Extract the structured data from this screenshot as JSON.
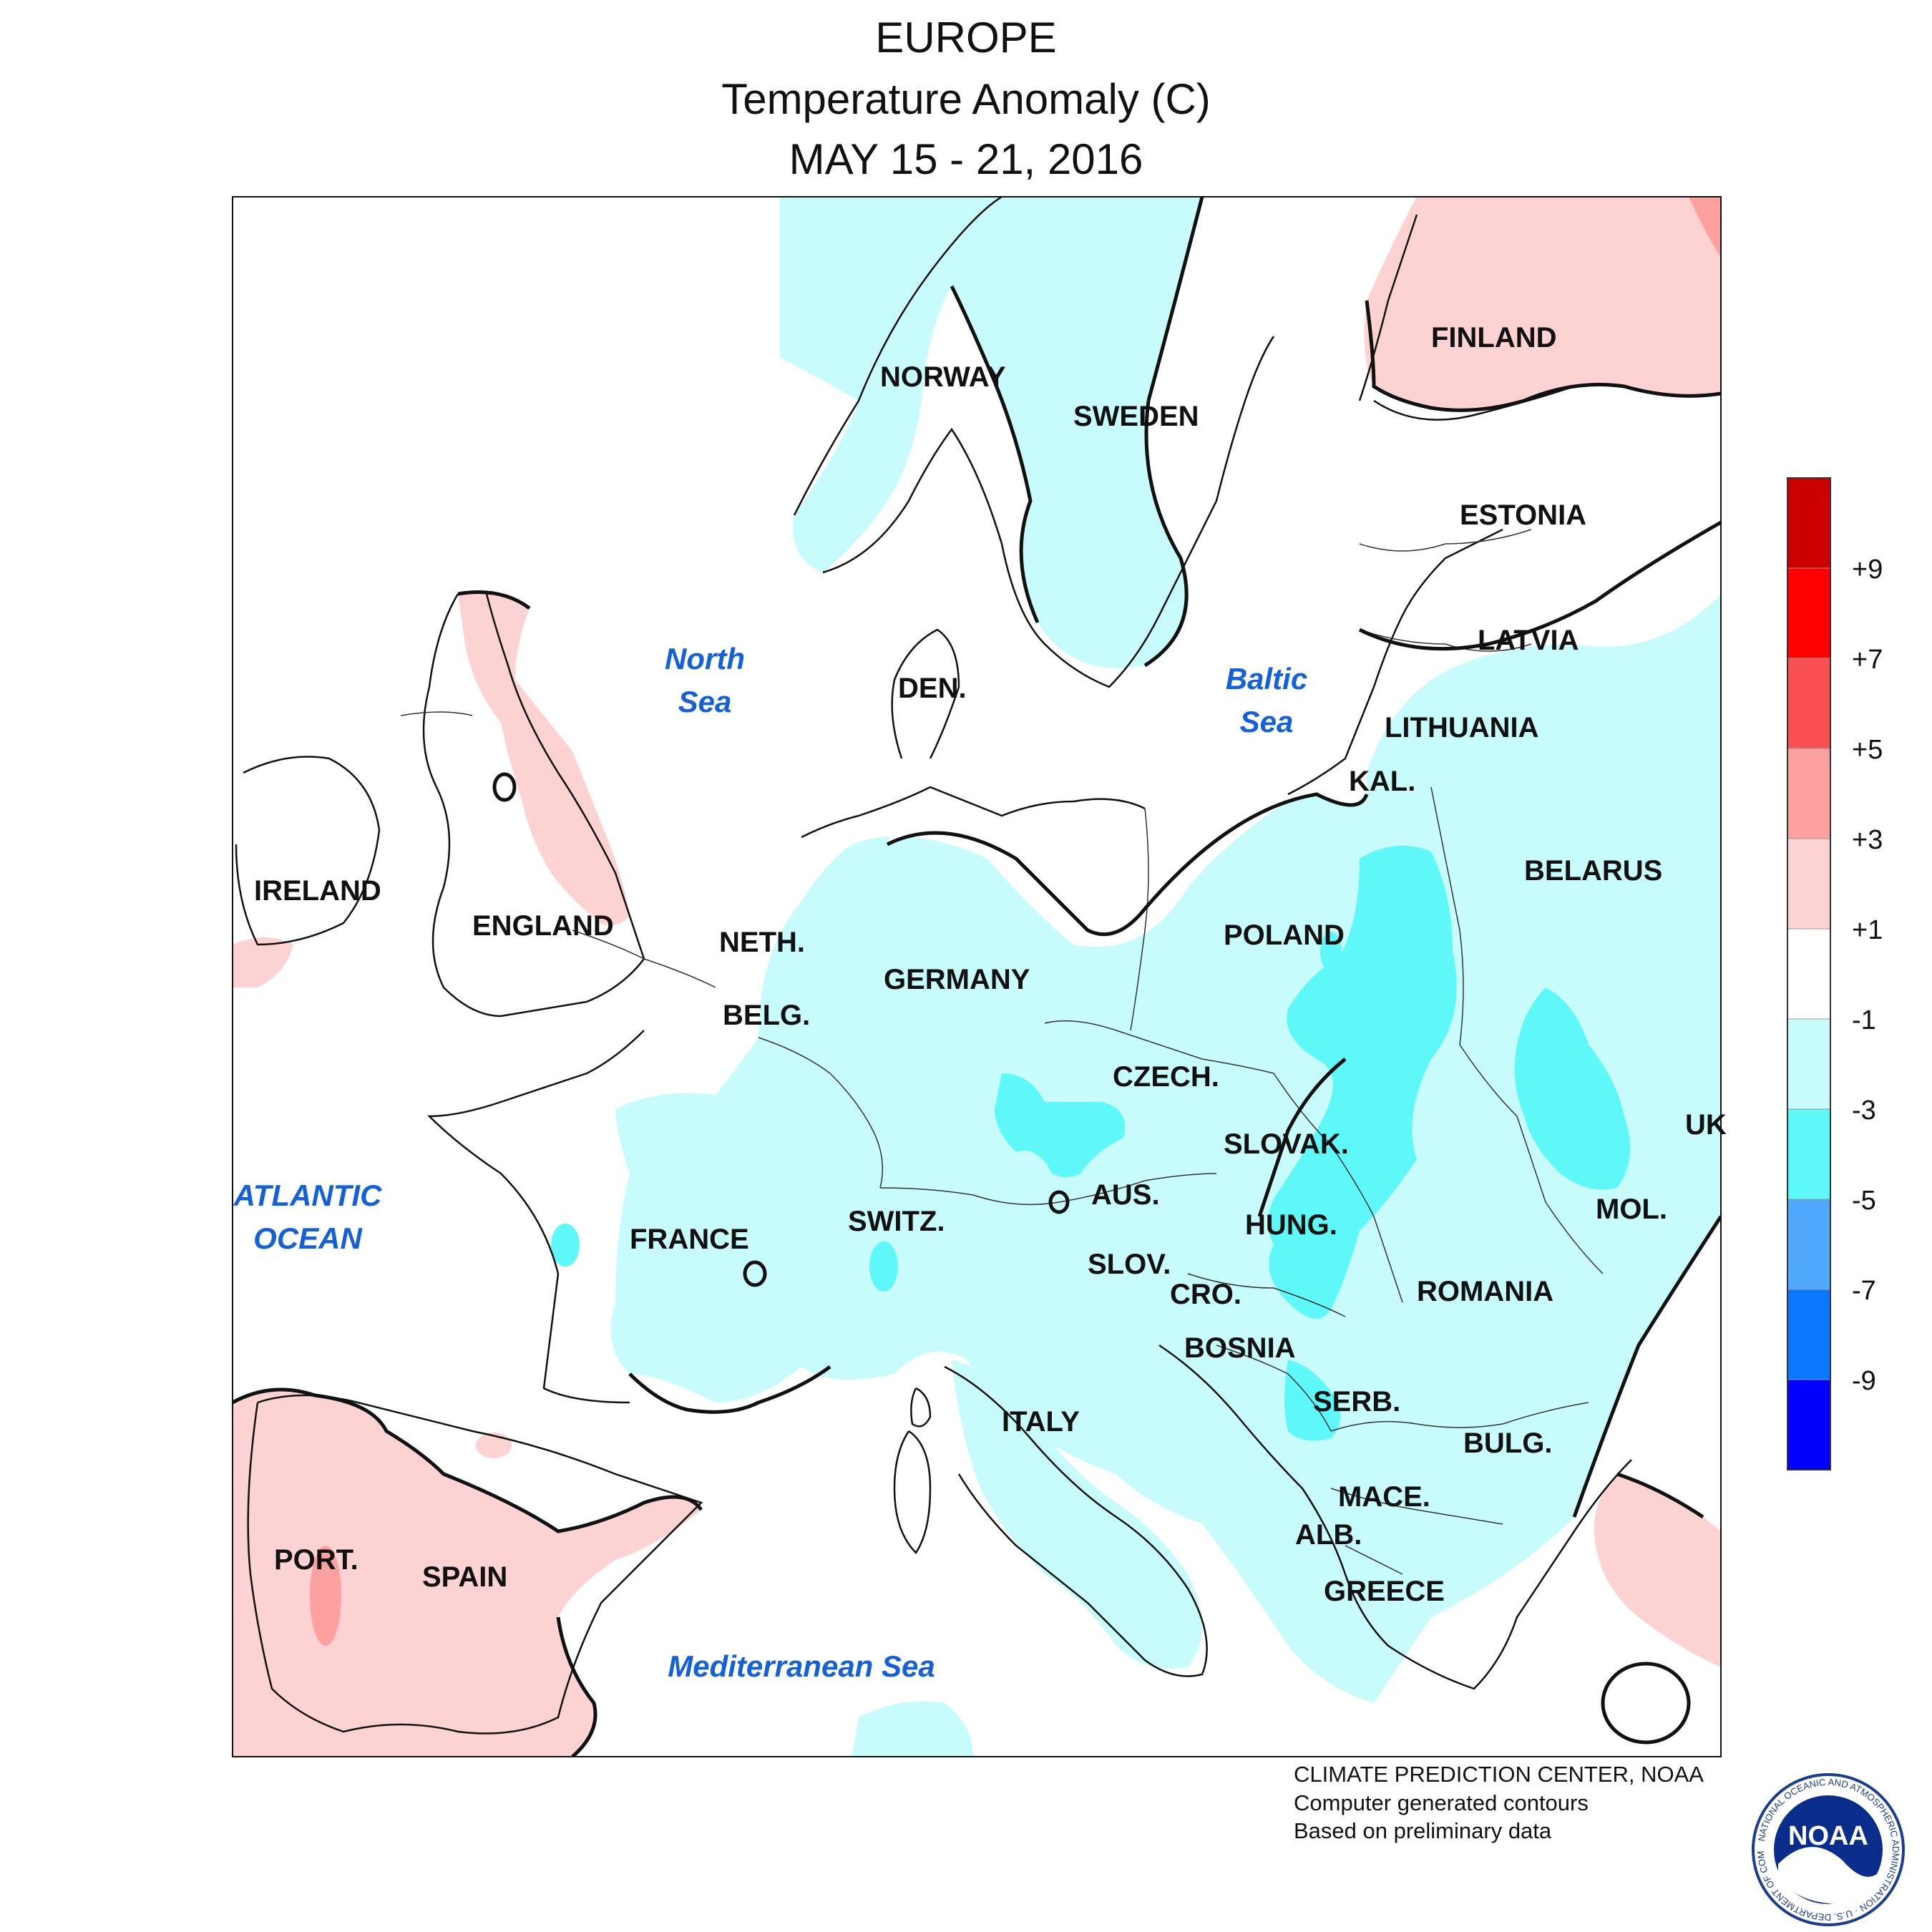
{
  "title": {
    "line1": "EUROPE",
    "line2": "Temperature Anomaly (C)",
    "line3": "MAY 15 - 21, 2016"
  },
  "colors": {
    "frame": "#111111",
    "land_outline": "#111111",
    "water_label": "#1460d8",
    "bin_le_m9": "#0000ff",
    "bin_m9_m7": "#0a78ff",
    "bin_m7_m5": "#50a8ff",
    "bin_m5_m3": "#5ef8f8",
    "bin_m3_m1": "#c8fcfc",
    "bin_m1_p1": "#ffffff",
    "bin_p1_p3": "#fcd2d2",
    "bin_p3_p5": "#fca0a0",
    "bin_p5_p7": "#f85050",
    "bin_p7_p9": "#ff0000",
    "bin_ge_p9": "#cc0000"
  },
  "legend": {
    "ticks": [
      "+9",
      "+7",
      "+5",
      "+3",
      "+1",
      "-1",
      "-3",
      "-5",
      "-7",
      "-9"
    ],
    "bins": [
      {
        "range": "> +9",
        "color": "#cc0000"
      },
      {
        "range": "+7 to +9",
        "color": "#ff0000"
      },
      {
        "range": "+5 to +7",
        "color": "#f85050"
      },
      {
        "range": "+3 to +5",
        "color": "#fca0a0"
      },
      {
        "range": "+1 to +3",
        "color": "#fcd2d2"
      },
      {
        "range": "-1 to +1",
        "color": "#ffffff"
      },
      {
        "range": "-3 to -1",
        "color": "#c8fcfc"
      },
      {
        "range": "-5 to -3",
        "color": "#5ef8f8"
      },
      {
        "range": "-7 to -5",
        "color": "#50a8ff"
      },
      {
        "range": "-9 to -7",
        "color": "#0a78ff"
      },
      {
        "range": "< -9",
        "color": "#0000ff"
      }
    ]
  },
  "country_labels": [
    "NORWAY",
    "SWEDEN",
    "FINLAND",
    "ESTONIA",
    "LATVIA",
    "LITHUANIA",
    "KAL.",
    "BELARUS",
    "DEN.",
    "IRELAND",
    "ENGLAND",
    "NETH.",
    "BELG.",
    "GERMANY",
    "POLAND",
    "CZECH.",
    "SLOVAK.",
    "UK",
    "MOL.",
    "AUS.",
    "HUNG.",
    "SWITZ.",
    "FRANCE",
    "SLOV.",
    "CRO.",
    "ROMANIA",
    "BOSNIA",
    "SERB.",
    "BULG.",
    "ITALY",
    "MACE.",
    "ALB.",
    "PORT.",
    "SPAIN",
    "GREECE"
  ],
  "water_labels": {
    "north_sea_1": "North",
    "north_sea_2": "Sea",
    "baltic_sea_1": "Baltic",
    "baltic_sea_2": "Sea",
    "atlantic_1": "ATLANTIC",
    "atlantic_2": "OCEAN",
    "mediterranean": "Mediterranean Sea"
  },
  "credits": {
    "line1": "CLIMATE PREDICTION CENTER, NOAA",
    "line2": "Computer generated contours",
    "line3": "Based on preliminary data"
  },
  "logo": {
    "center_text": "NOAA",
    "ring_text": "NATIONAL OCEANIC AND ATMOSPHERIC ADMINISTRATION · U.S. DEPARTMENT OF COMMERCE"
  }
}
